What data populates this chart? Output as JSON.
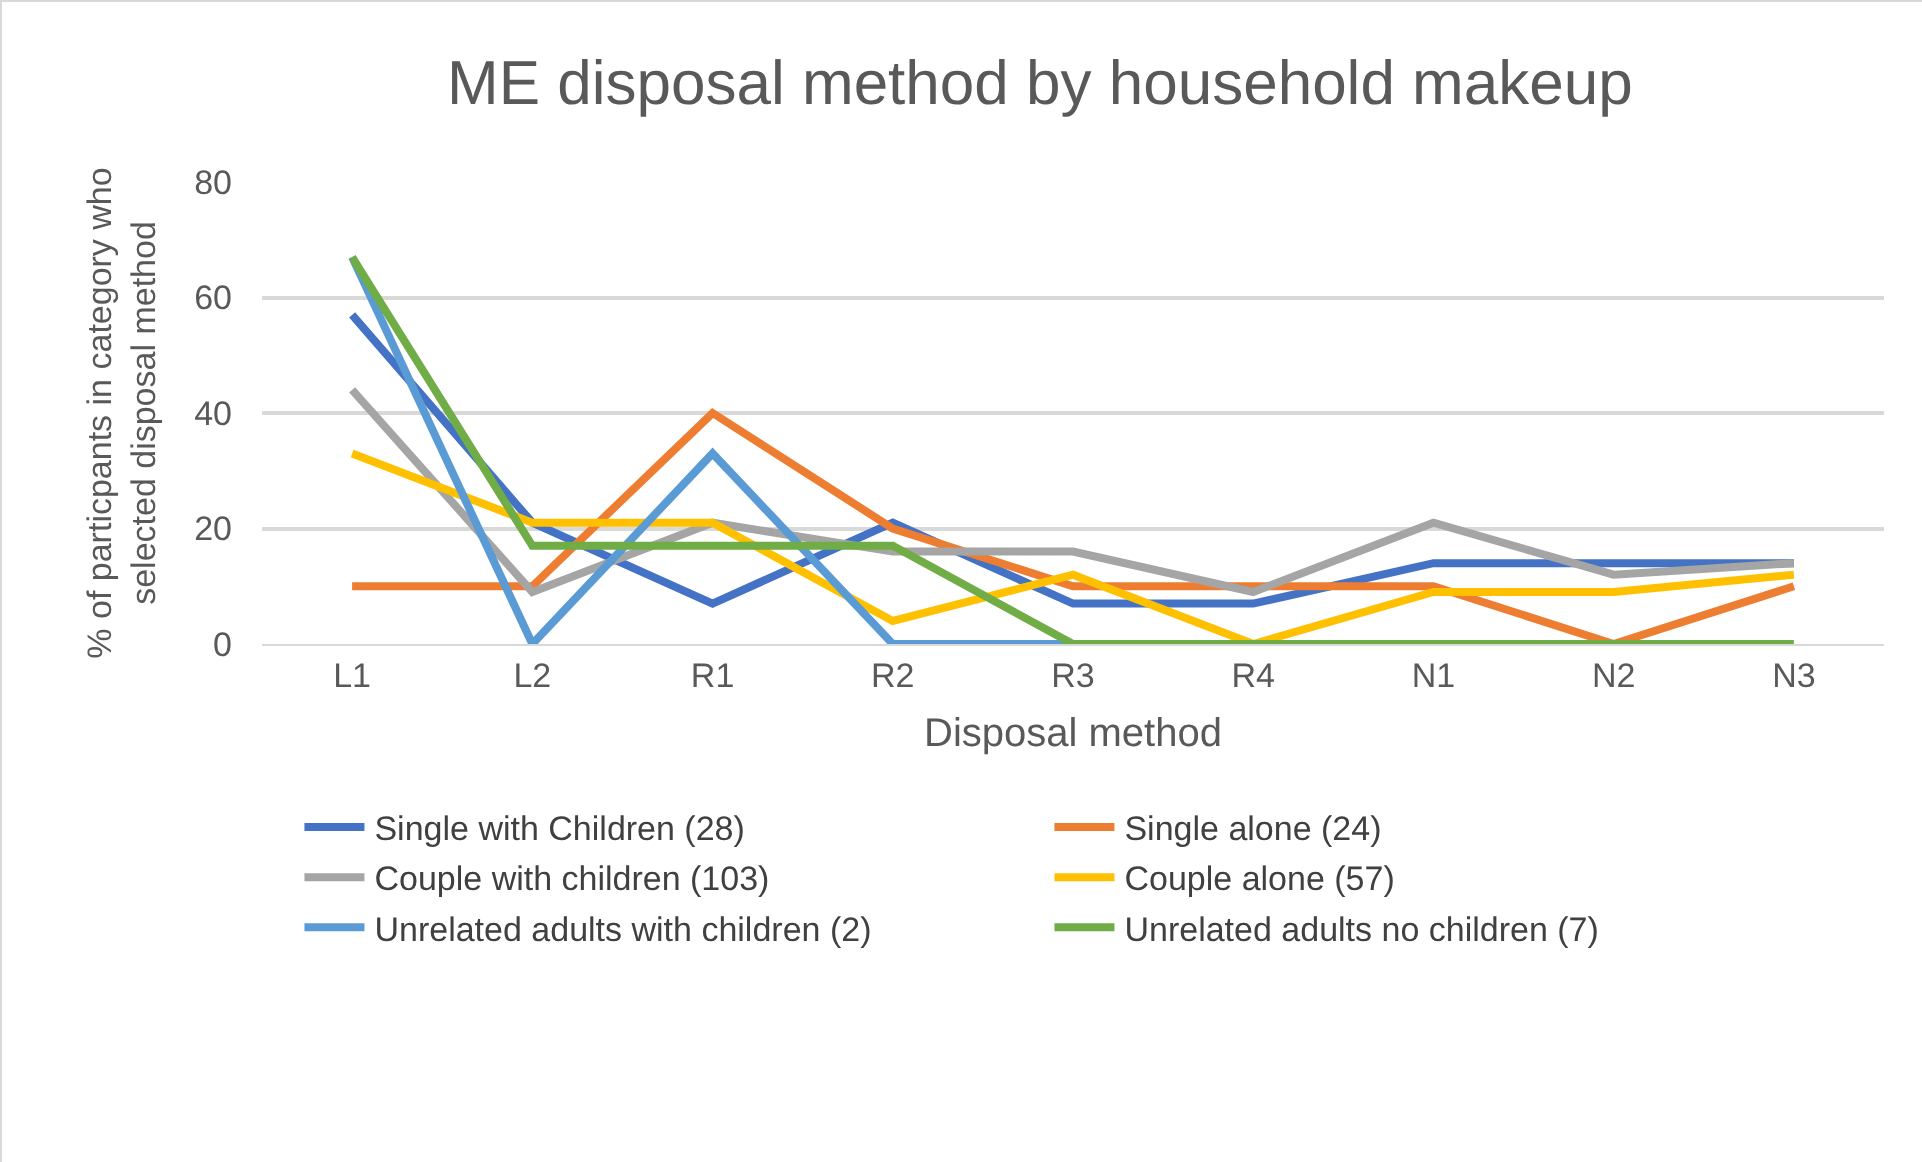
{
  "chart_data": {
    "type": "line",
    "title": "ME disposal method by household makeup",
    "xlabel": "Disposal method",
    "ylabel": "% of particpants in category who selected disposal method",
    "categories": [
      "L1",
      "L2",
      "R1",
      "R2",
      "R3",
      "R4",
      "N1",
      "N2",
      "N3"
    ],
    "ylim": [
      0,
      80
    ],
    "yticks": [
      0,
      20,
      40,
      60,
      80
    ],
    "grid": "y",
    "legend": "bottom",
    "marker": "none",
    "line_style": "solid",
    "series": [
      {
        "name": "Single with Children (28)",
        "color": "#4472c4",
        "values": [
          57,
          21,
          7,
          21,
          7,
          7,
          14,
          14,
          14
        ]
      },
      {
        "name": "Single alone (24)",
        "color": "#ed7d31",
        "values": [
          10,
          10,
          40,
          20,
          10,
          10,
          10,
          0,
          10
        ]
      },
      {
        "name": "Couple with children (103)",
        "color": "#a5a5a5",
        "values": [
          44,
          9,
          21,
          16,
          16,
          9,
          21,
          12,
          14
        ]
      },
      {
        "name": "Couple alone (57)",
        "color": "#ffc000",
        "values": [
          33,
          21,
          21,
          4,
          12,
          0,
          9,
          9,
          12
        ]
      },
      {
        "name": "Unrelated adults with children (2)",
        "color": "#5b9bd5",
        "values": [
          67,
          0,
          33,
          0,
          0,
          0,
          null,
          null,
          null
        ]
      },
      {
        "name": "Unrelated adults no children (7)",
        "color": "#70ad47",
        "values": [
          67,
          17,
          17,
          17,
          0,
          0,
          0,
          0,
          0
        ]
      }
    ]
  }
}
